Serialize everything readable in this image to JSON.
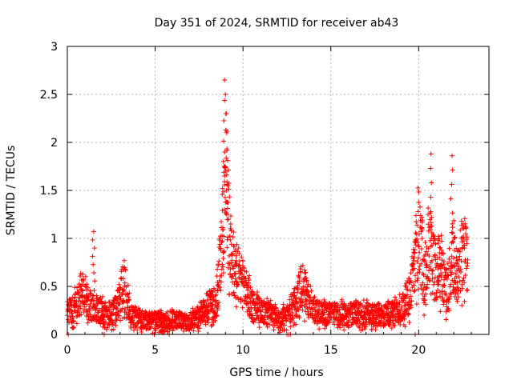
{
  "chart_data": {
    "type": "scatter",
    "title": "Day 351 of 2024, SRMTID for receiver ab43",
    "xlabel": "GPS time / hours",
    "ylabel": "SRMTID / TECUs",
    "xlim": [
      0,
      24
    ],
    "ylim": [
      0,
      3
    ],
    "xticks": [
      0,
      5,
      10,
      15,
      20
    ],
    "yticks": [
      0,
      0.5,
      1,
      1.5,
      2,
      2.5,
      3
    ],
    "ytick_labels": [
      "0",
      "0.5",
      "1",
      "1.5",
      "2",
      "2.5",
      "3"
    ],
    "grid": true,
    "marker": "+",
    "marker_color": "#ff0000",
    "series_profile": {
      "name": "SRMTID",
      "x": [
        0,
        0.3,
        0.6,
        0.9,
        1.2,
        1.6,
        2.0,
        2.5,
        3.0,
        3.2,
        3.6,
        4.0,
        5.0,
        6.0,
        6.8,
        7.5,
        8.0,
        8.5,
        8.8,
        9.0,
        9.2,
        9.5,
        10.0,
        10.5,
        11.0,
        11.5,
        12.0,
        12.5,
        13.0,
        13.4,
        13.7,
        14.0,
        15.0,
        16.0,
        17.0,
        18.0,
        19.0,
        19.5,
        19.8,
        20.0,
        20.3,
        20.6,
        21.0,
        21.3,
        21.6,
        21.9,
        22.2,
        22.5,
        22.8
      ],
      "y": [
        0.22,
        0.25,
        0.35,
        0.45,
        0.3,
        0.25,
        0.22,
        0.18,
        0.35,
        0.55,
        0.18,
        0.15,
        0.13,
        0.14,
        0.12,
        0.17,
        0.28,
        0.35,
        0.9,
        1.5,
        1.1,
        0.6,
        0.5,
        0.3,
        0.22,
        0.2,
        0.15,
        0.2,
        0.32,
        0.5,
        0.35,
        0.25,
        0.2,
        0.2,
        0.2,
        0.18,
        0.25,
        0.4,
        0.75,
        1.1,
        0.55,
        0.9,
        0.6,
        0.7,
        0.4,
        0.8,
        0.55,
        0.85,
        0.7
      ],
      "peaks": [
        {
          "x": 1.5,
          "y": 1.07
        },
        {
          "x": 8.95,
          "y": 2.65
        },
        {
          "x": 9.0,
          "y": 2.5
        },
        {
          "x": 9.05,
          "y": 2.3
        },
        {
          "x": 20.7,
          "y": 1.88
        },
        {
          "x": 21.9,
          "y": 1.86
        }
      ]
    }
  }
}
